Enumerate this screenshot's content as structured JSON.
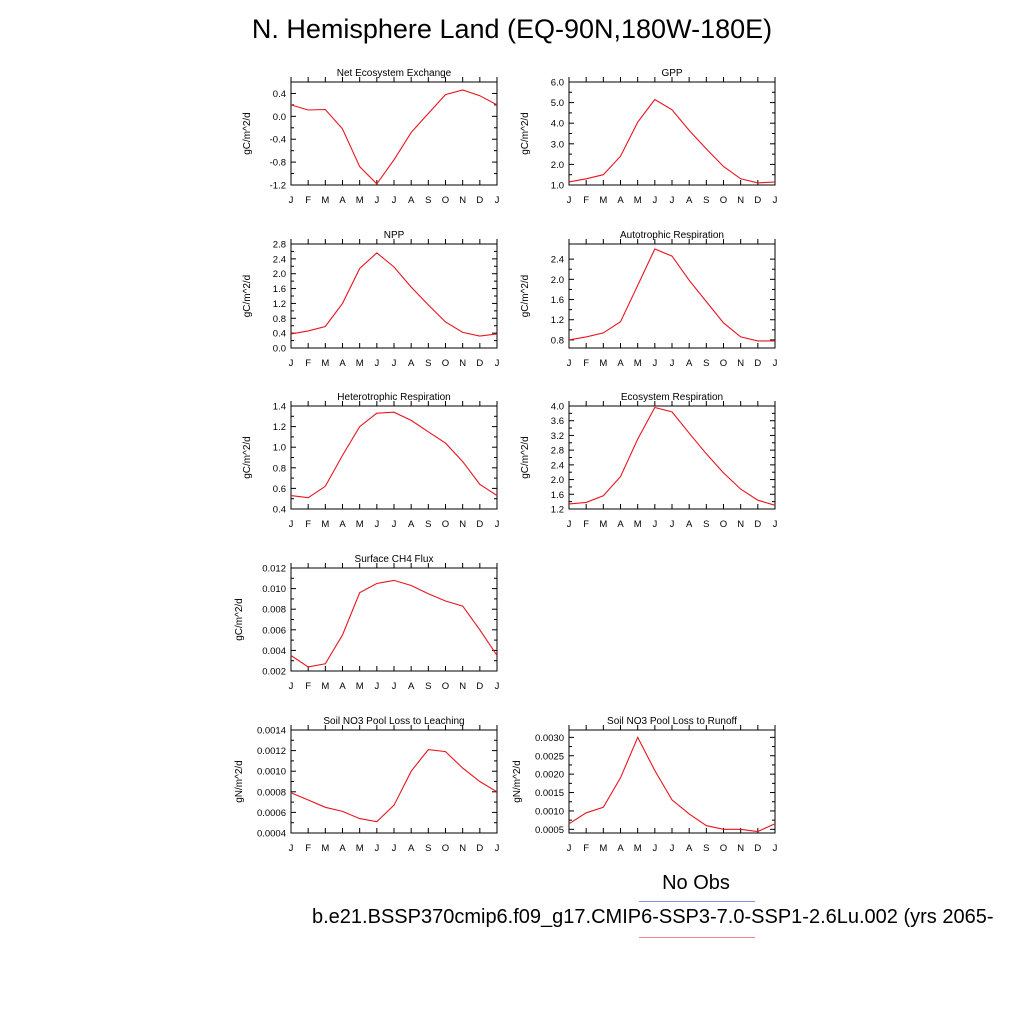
{
  "title": "N. Hemisphere Land (EQ-90N,180W-180E)",
  "legend": {
    "obs_label": "No Obs",
    "obs_color": "#8a8ae8",
    "run_label": "b.e21.BSSP370cmip6.f09_g17.CMIP6-SSP3-7.0-SSP1-2.6Lu.002 (yrs 2065-",
    "run_color": "#f08a8a"
  },
  "line_color": "#e8141e",
  "months": [
    "J",
    "F",
    "M",
    "A",
    "M",
    "J",
    "J",
    "A",
    "S",
    "O",
    "N",
    "D",
    "J"
  ],
  "chart_data": [
    {
      "type": "line",
      "title": "Net Ecosystem Exchange",
      "ylabel": "gC/m^2/d",
      "ylim": [
        -1.2,
        0.6
      ],
      "yticks": [
        -1.2,
        -0.8,
        -0.4,
        0.0,
        0.4
      ],
      "yticklabels": [
        "-1.2",
        "-0.8",
        "-0.4",
        "0.0",
        "0.4"
      ],
      "values": [
        0.2,
        0.11,
        0.12,
        -0.22,
        -0.88,
        -1.18,
        -0.76,
        -0.28,
        0.05,
        0.38,
        0.46,
        0.36,
        0.2
      ]
    },
    {
      "type": "line",
      "title": "GPP",
      "ylabel": "gC/m^2/d",
      "ylim": [
        1.0,
        6.0
      ],
      "yticks": [
        1.0,
        2.0,
        3.0,
        4.0,
        5.0,
        6.0
      ],
      "yticklabels": [
        "1.0",
        "2.0",
        "3.0",
        "4.0",
        "5.0",
        "6.0"
      ],
      "values": [
        1.15,
        1.3,
        1.5,
        2.4,
        4.05,
        5.15,
        4.65,
        3.65,
        2.75,
        1.9,
        1.3,
        1.1,
        1.15
      ]
    },
    {
      "type": "line",
      "title": "NPP",
      "ylabel": "gC/m^2/d",
      "ylim": [
        0.0,
        2.8
      ],
      "yticks": [
        0.0,
        0.4,
        0.8,
        1.2,
        1.6,
        2.0,
        2.4,
        2.8
      ],
      "yticklabels": [
        "0.0",
        "0.4",
        "0.8",
        "1.2",
        "1.6",
        "2.0",
        "2.4",
        "2.8"
      ],
      "values": [
        0.38,
        0.46,
        0.58,
        1.2,
        2.14,
        2.56,
        2.18,
        1.64,
        1.16,
        0.7,
        0.42,
        0.32,
        0.38
      ]
    },
    {
      "type": "line",
      "title": "Autotrophic Respiration",
      "ylabel": "gC/m^2/d",
      "ylim": [
        0.64,
        2.7
      ],
      "yticks": [
        0.8,
        1.2,
        1.6,
        2.0,
        2.4
      ],
      "yticklabels": [
        "0.8",
        "1.2",
        "1.6",
        "2.0",
        "2.4"
      ],
      "values": [
        0.8,
        0.86,
        0.94,
        1.16,
        1.88,
        2.6,
        2.46,
        1.98,
        1.56,
        1.14,
        0.86,
        0.78,
        0.78
      ]
    },
    {
      "type": "line",
      "title": "Heterotrophic Respiration",
      "ylabel": "gC/m^2/d",
      "ylim": [
        0.4,
        1.4
      ],
      "yticks": [
        0.4,
        0.6,
        0.8,
        1.0,
        1.2,
        1.4
      ],
      "yticklabels": [
        "0.4",
        "0.6",
        "0.8",
        "1.0",
        "1.2",
        "1.4"
      ],
      "values": [
        0.53,
        0.51,
        0.62,
        0.92,
        1.2,
        1.33,
        1.34,
        1.26,
        1.15,
        1.04,
        0.86,
        0.64,
        0.53
      ]
    },
    {
      "type": "line",
      "title": "Ecosystem Respiration",
      "ylabel": "gC/m^2/d",
      "ylim": [
        1.2,
        4.0
      ],
      "yticks": [
        1.2,
        1.6,
        2.0,
        2.4,
        2.8,
        3.2,
        3.6,
        4.0
      ],
      "yticklabels": [
        "1.2",
        "1.6",
        "2.0",
        "2.4",
        "2.8",
        "3.2",
        "3.6",
        "4.0"
      ],
      "values": [
        1.34,
        1.38,
        1.56,
        2.08,
        3.1,
        3.96,
        3.84,
        3.26,
        2.7,
        2.18,
        1.74,
        1.44,
        1.3
      ]
    },
    {
      "type": "line",
      "title": "Surface CH4 Flux",
      "ylabel": "gC/m^2/d",
      "ylim": [
        0.002,
        0.012
      ],
      "yticks": [
        0.002,
        0.004,
        0.006,
        0.008,
        0.01,
        0.012
      ],
      "yticklabels": [
        "0.002",
        "0.004",
        "0.006",
        "0.008",
        "0.010",
        "0.012"
      ],
      "values": [
        0.0035,
        0.0024,
        0.0027,
        0.0055,
        0.0096,
        0.0105,
        0.0108,
        0.0103,
        0.0095,
        0.0088,
        0.0083,
        0.006,
        0.0035
      ]
    },
    {
      "type": "line",
      "title": "Soil NO3 Pool Loss to Leaching",
      "ylabel": "gN/m^2/d",
      "ylim": [
        0.0004,
        0.0014
      ],
      "yticks": [
        0.0004,
        0.0006,
        0.0008,
        0.001,
        0.0012,
        0.0014
      ],
      "yticklabels": [
        "0.0004",
        "0.0006",
        "0.0008",
        "0.0010",
        "0.0012",
        "0.0014"
      ],
      "values": [
        0.00079,
        0.00072,
        0.00065,
        0.00061,
        0.00054,
        0.00051,
        0.00067,
        0.001,
        0.00121,
        0.00119,
        0.00103,
        0.0009,
        0.0008
      ]
    },
    {
      "type": "line",
      "title": "Soil NO3 Pool Loss to Runoff",
      "ylabel": "gN/m^2/d",
      "ylim": [
        0.0004,
        0.0032
      ],
      "yticks": [
        0.0005,
        0.001,
        0.0015,
        0.002,
        0.0025,
        0.003
      ],
      "yticklabels": [
        "0.0005",
        "0.0010",
        "0.0015",
        "0.0020",
        "0.0025",
        "0.0030"
      ],
      "values": [
        0.00065,
        0.00095,
        0.0011,
        0.0019,
        0.003,
        0.0021,
        0.0013,
        0.00092,
        0.0006,
        0.0005,
        0.0005,
        0.00044,
        0.00065
      ]
    }
  ]
}
